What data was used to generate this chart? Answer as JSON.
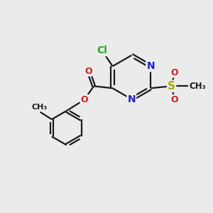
{
  "bg_color": "#ebebeb",
  "bond_color": "#1a1a1a",
  "bond_width": 1.6,
  "colors": {
    "C": "#1a1a1a",
    "N": "#2020cc",
    "O": "#cc2020",
    "Cl": "#22aa22",
    "S": "#aaaa00"
  },
  "font_size": 9
}
